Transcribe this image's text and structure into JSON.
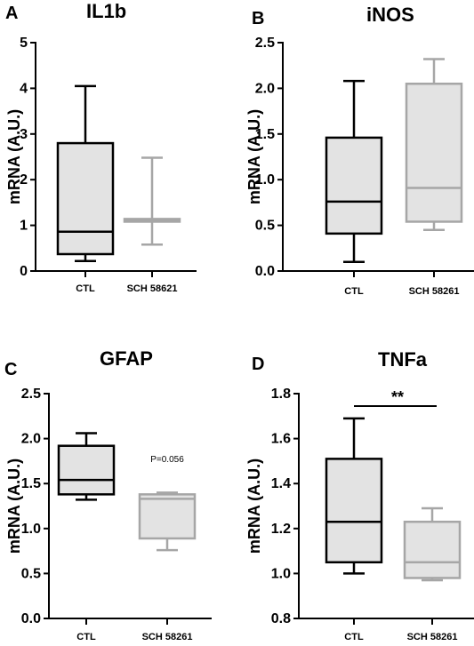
{
  "chart_data": [
    {
      "type": "box",
      "panel": "A",
      "title": "IL1b",
      "ylabel": "mRNA (A.U.)",
      "ylim": [
        0,
        5
      ],
      "yticks": [
        "0",
        "1",
        "2",
        "3",
        "4",
        "5"
      ],
      "categories": [
        "CTL",
        "SCH 58621"
      ],
      "boxes": [
        {
          "min": 0.22,
          "q1": 0.37,
          "median": 0.86,
          "q3": 2.8,
          "max": 4.05,
          "color": "#000000"
        },
        {
          "min": 0.58,
          "q1": 1.08,
          "median": 1.1,
          "q3": 1.14,
          "max": 2.48,
          "color": "#a6a6a6"
        }
      ],
      "annotation": ""
    },
    {
      "type": "box",
      "panel": "B",
      "title": "iNOS",
      "ylabel": "mRNA (A.U.)",
      "ylim": [
        0,
        2.5
      ],
      "yticks": [
        "0.0",
        "0.5",
        "1.0",
        "1.5",
        "2.0",
        "2.5"
      ],
      "categories": [
        "CTL",
        "SCH 58261"
      ],
      "boxes": [
        {
          "min": 0.1,
          "q1": 0.41,
          "median": 0.76,
          "q3": 1.46,
          "max": 2.08,
          "color": "#000000"
        },
        {
          "min": 0.45,
          "q1": 0.54,
          "median": 0.91,
          "q3": 2.05,
          "max": 2.32,
          "color": "#a6a6a6"
        }
      ],
      "annotation": ""
    },
    {
      "type": "box",
      "panel": "C",
      "title": "GFAP",
      "ylabel": "mRNA (A.U.)",
      "ylim": [
        0,
        2.5
      ],
      "yticks": [
        "0.0",
        "0.5",
        "1.0",
        "1.5",
        "2.0",
        "2.5"
      ],
      "categories": [
        "CTL",
        "SCH 58261"
      ],
      "boxes": [
        {
          "min": 1.32,
          "q1": 1.38,
          "median": 1.54,
          "q3": 1.92,
          "max": 2.06,
          "color": "#000000"
        },
        {
          "min": 0.76,
          "q1": 0.89,
          "median": 1.33,
          "q3": 1.38,
          "max": 1.4,
          "color": "#a6a6a6"
        }
      ],
      "annotation": "P=0.056"
    },
    {
      "type": "box",
      "panel": "D",
      "title": "TNFa",
      "ylabel": "mRNA (A.U.)",
      "ylim": [
        0.8,
        1.8
      ],
      "yticks": [
        "0.8",
        "1.0",
        "1.2",
        "1.4",
        "1.6",
        "1.8"
      ],
      "categories": [
        "CTL",
        "SCH 58261"
      ],
      "boxes": [
        {
          "min": 1.0,
          "q1": 1.05,
          "median": 1.23,
          "q3": 1.51,
          "max": 1.69,
          "color": "#000000"
        },
        {
          "min": 0.97,
          "q1": 0.98,
          "median": 1.05,
          "q3": 1.23,
          "max": 1.29,
          "color": "#a6a6a6"
        }
      ],
      "annotation": "**"
    }
  ]
}
